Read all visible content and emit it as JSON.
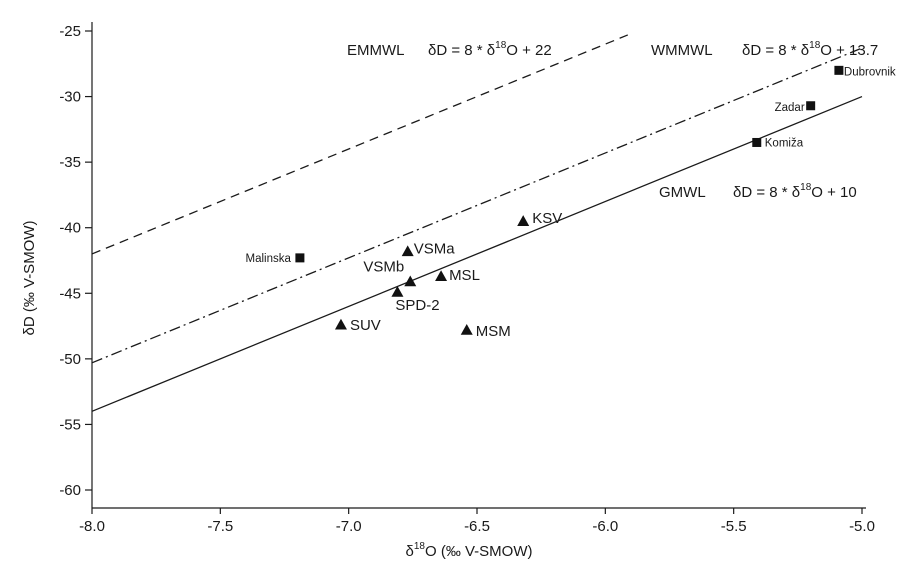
{
  "chart_data": {
    "type": "scatter",
    "x_axis": {
      "label_prefix": "δ",
      "label_sup": "18",
      "label_suffix": "O (‰ V-SMOW)",
      "range": [
        -8.0,
        -5.0
      ],
      "ticks": [
        -8.0,
        -7.5,
        -7.0,
        -6.5,
        -6.0,
        -5.5,
        -5.0
      ],
      "tick_labels": [
        "-8.0",
        "-7.5",
        "-7.0",
        "-6.5",
        "-6.0",
        "-5.5",
        "-5.0"
      ]
    },
    "y_axis": {
      "label": "δD (‰ V-SMOW)",
      "range": [
        -61,
        -24
      ],
      "ticks": [
        -25,
        -30,
        -35,
        -40,
        -45,
        -50,
        -55,
        -60
      ],
      "tick_labels": [
        "-25",
        "-30",
        "-35",
        "-40",
        "-45",
        "-50",
        "-55",
        "-60"
      ]
    },
    "grid": false,
    "lines": [
      {
        "id": "emmwl",
        "name": "EMMWL",
        "slope": 8,
        "intercept": 22,
        "style": "dashed",
        "eq_lhs": "δD  = 8 * δ",
        "eq_sup": "18",
        "eq_rhs": "O + 22"
      },
      {
        "id": "wmmwl",
        "name": "WMMWL",
        "slope": 8,
        "intercept": 13.7,
        "style": "dashdot",
        "eq_lhs": "δD = 8 * δ",
        "eq_sup": "18",
        "eq_rhs": "O + 13.7"
      },
      {
        "id": "gmwl",
        "name": "GMWL",
        "slope": 8,
        "intercept": 10,
        "style": "solid",
        "eq_lhs": "δD = 8 * δ",
        "eq_sup": "18",
        "eq_rhs": "O + 10"
      }
    ],
    "triangle_points": [
      {
        "label": "KSV",
        "x": -6.32,
        "y": -39.5
      },
      {
        "label": "VSMa",
        "x": -6.77,
        "y": -41.8
      },
      {
        "label": "VSMb",
        "x": -6.76,
        "y": -44.1
      },
      {
        "label": "MSL",
        "x": -6.64,
        "y": -43.7
      },
      {
        "label": "SPD-2",
        "x": -6.81,
        "y": -44.9
      },
      {
        "label": "SUV",
        "x": -7.03,
        "y": -47.4
      },
      {
        "label": "MSM",
        "x": -6.54,
        "y": -47.8
      }
    ],
    "square_points": [
      {
        "label": "Malinska",
        "x": -7.19,
        "y": -42.3
      },
      {
        "label": "Dubrovnik",
        "x": -5.09,
        "y": -28.0
      },
      {
        "label": "Zadar",
        "x": -5.2,
        "y": -30.7
      },
      {
        "label": "Komiža",
        "x": -5.41,
        "y": -33.5
      }
    ]
  }
}
